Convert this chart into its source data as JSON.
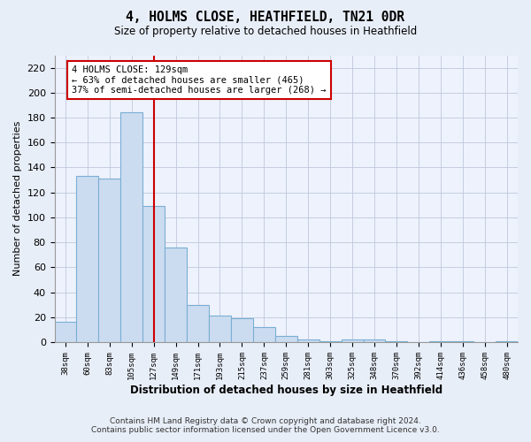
{
  "title": "4, HOLMS CLOSE, HEATHFIELD, TN21 0DR",
  "subtitle": "Size of property relative to detached houses in Heathfield",
  "xlabel": "Distribution of detached houses by size in Heathfield",
  "ylabel": "Number of detached properties",
  "bar_labels": [
    "38sqm",
    "60sqm",
    "83sqm",
    "105sqm",
    "127sqm",
    "149sqm",
    "171sqm",
    "193sqm",
    "215sqm",
    "237sqm",
    "259sqm",
    "281sqm",
    "303sqm",
    "325sqm",
    "348sqm",
    "370sqm",
    "392sqm",
    "414sqm",
    "436sqm",
    "458sqm",
    "480sqm"
  ],
  "bar_values": [
    16,
    133,
    131,
    184,
    109,
    76,
    30,
    21,
    19,
    12,
    5,
    2,
    1,
    2,
    2,
    1,
    0,
    1,
    1,
    0,
    1
  ],
  "bar_color": "#ccdcf0",
  "bar_edge_color": "#7aaed4",
  "vline_x": 4,
  "annotation_text": "4 HOLMS CLOSE: 129sqm\n← 63% of detached houses are smaller (465)\n37% of semi-detached houses are larger (268) →",
  "annotation_box_color": "#ffffff",
  "annotation_box_edge": "#cc0000",
  "vline_color": "#cc0000",
  "ylim": [
    0,
    230
  ],
  "yticks": [
    0,
    20,
    40,
    60,
    80,
    100,
    120,
    140,
    160,
    180,
    200,
    220
  ],
  "footer_line1": "Contains HM Land Registry data © Crown copyright and database right 2024.",
  "footer_line2": "Contains public sector information licensed under the Open Government Licence v3.0.",
  "bg_color": "#e8eef8",
  "plot_bg_color": "#edf2fc",
  "grid_color": "#c0c8dc"
}
